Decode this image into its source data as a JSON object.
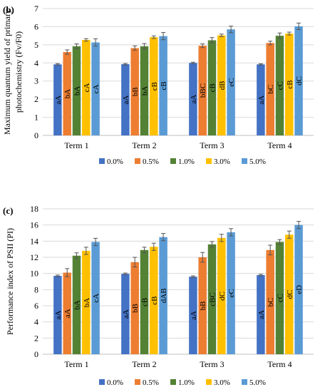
{
  "colors": {
    "series": [
      "#4472C4",
      "#ED7D31",
      "#548235",
      "#FFC000",
      "#5B9BD5"
    ],
    "grid": "#d9d9d9",
    "axis": "#bfbfbf",
    "text": "#000000",
    "error_bar": "#555555",
    "bar_label": "#000000"
  },
  "chart_data": [
    {
      "type": "bar",
      "panel_label": "(b)",
      "title": "",
      "ylabel_line1": "Maximum quantum yield of primary",
      "ylabel_line2": "photochemistry (Fv/F0)",
      "ylim": [
        0,
        7
      ],
      "yticks": [
        "0",
        "1",
        "2",
        "3",
        "4",
        "5",
        "6",
        "7"
      ],
      "grid": true,
      "legend": "bottom",
      "categories": [
        "Term 1",
        "Term 2",
        "Term 3",
        "Term 4"
      ],
      "series": [
        {
          "name": "0.0%",
          "values": [
            3.92,
            3.93,
            4.0,
            3.92
          ],
          "errors": [
            0.04,
            0.04,
            0.04,
            0.03
          ],
          "labels": [
            "aA",
            "aA",
            "aA",
            "aA"
          ]
        },
        {
          "name": "0.5%",
          "values": [
            4.6,
            4.82,
            4.95,
            5.1
          ],
          "errors": [
            0.12,
            0.12,
            0.1,
            0.1
          ],
          "labels": [
            "bA",
            "bB",
            "bBC",
            "bC"
          ]
        },
        {
          "name": "1.0%",
          "values": [
            4.92,
            4.92,
            5.25,
            5.5
          ],
          "errors": [
            0.13,
            0.15,
            0.15,
            0.15
          ],
          "labels": [
            "bA",
            "bA",
            "cB",
            "cC"
          ]
        },
        {
          "name": "3.0%",
          "values": [
            5.27,
            5.42,
            5.52,
            5.62
          ],
          "errors": [
            0.07,
            0.07,
            0.07,
            0.08
          ],
          "labels": [
            "cA",
            "cB",
            "dB",
            "cB"
          ]
        },
        {
          "name": "5.0%",
          "values": [
            5.13,
            5.48,
            5.85,
            6.02
          ],
          "errors": [
            0.2,
            0.2,
            0.18,
            0.18
          ],
          "labels": [
            "cA",
            "cB",
            "eC",
            "dC"
          ]
        }
      ]
    },
    {
      "type": "bar",
      "panel_label": "(c)",
      "title": "",
      "ylabel_line1": "Performance index of PSII (PI)",
      "ylabel_line2": "",
      "ylim": [
        0,
        18
      ],
      "yticks": [
        "0",
        "2",
        "4",
        "6",
        "8",
        "10",
        "12",
        "14",
        "16",
        "18"
      ],
      "grid": true,
      "legend": "bottom",
      "categories": [
        "Term 1",
        "Term 2",
        "Term 3",
        "Term 4"
      ],
      "series": [
        {
          "name": "0.0%",
          "values": [
            9.7,
            9.95,
            9.6,
            9.8
          ],
          "errors": [
            0.1,
            0.1,
            0.1,
            0.1
          ],
          "labels": [
            "aA",
            "aA",
            "aA",
            "aA"
          ]
        },
        {
          "name": "0.5%",
          "values": [
            10.1,
            11.4,
            12.0,
            12.9
          ],
          "errors": [
            0.5,
            0.6,
            0.6,
            0.6
          ],
          "labels": [
            "aA",
            "bB",
            "bB",
            "bC"
          ]
        },
        {
          "name": "1.0%",
          "values": [
            12.2,
            12.9,
            13.6,
            13.9
          ],
          "errors": [
            0.35,
            0.35,
            0.35,
            0.3
          ],
          "labels": [
            "bA",
            "cB",
            "cBC",
            "cC"
          ]
        },
        {
          "name": "3.0%",
          "values": [
            12.8,
            13.3,
            14.4,
            14.8
          ],
          "errors": [
            0.45,
            0.45,
            0.45,
            0.45
          ],
          "labels": [
            "bA",
            "cB",
            "dC",
            "dC"
          ]
        },
        {
          "name": "5.0%",
          "values": [
            13.9,
            14.5,
            15.1,
            16.0
          ],
          "errors": [
            0.45,
            0.45,
            0.45,
            0.45
          ],
          "labels": [
            "cA",
            "dAB",
            "eC",
            "eD"
          ]
        }
      ]
    }
  ]
}
